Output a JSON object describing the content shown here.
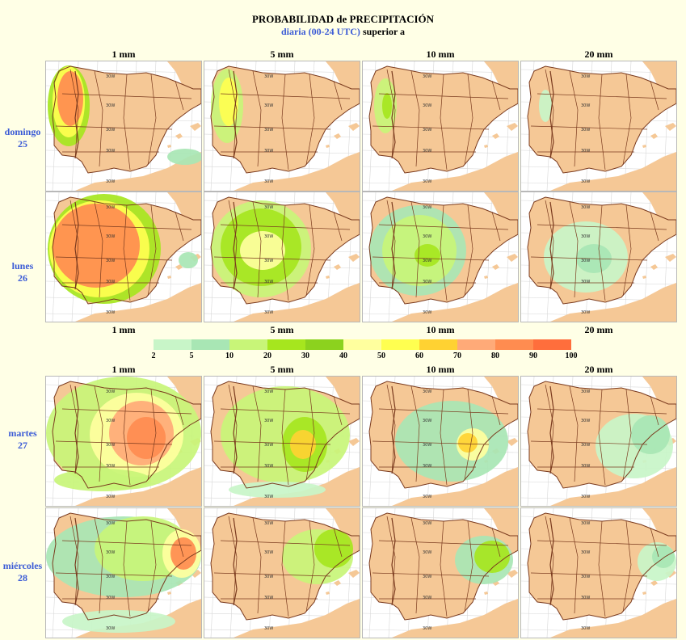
{
  "title": "PROBABILIDAD de PRECIPITACIÓN",
  "subtitle_blue": "diaria (00-24 UTC)",
  "subtitle_black": "superior a",
  "thresholds": [
    "1 mm",
    "5 mm",
    "10 mm",
    "20 mm"
  ],
  "days": [
    {
      "weekday": "domingo",
      "date": "25"
    },
    {
      "weekday": "lunes",
      "date": "26"
    },
    {
      "weekday": "martes",
      "date": "27"
    },
    {
      "weekday": "miércoles",
      "date": "28"
    }
  ],
  "legend": {
    "ticks": [
      "2",
      "5",
      "10",
      "20",
      "30",
      "40",
      "50",
      "60",
      "70",
      "80",
      "90",
      "100"
    ],
    "colors": [
      "#c8f5c8",
      "#a8e6b4",
      "#c8f578",
      "#a6e61e",
      "#8cd21e",
      "#ffff9e",
      "#ffff50",
      "#ffd232",
      "#ffaa78",
      "#ff8c50",
      "#ff6e3c"
    ]
  },
  "map_labels": {
    "grid_marker": "30W"
  },
  "colors": {
    "sea": "#ffffff",
    "land": "#f5c896",
    "border": "#7a3a1e",
    "accent_blue": "#3b5bd6",
    "background": "#ffffe6"
  }
}
